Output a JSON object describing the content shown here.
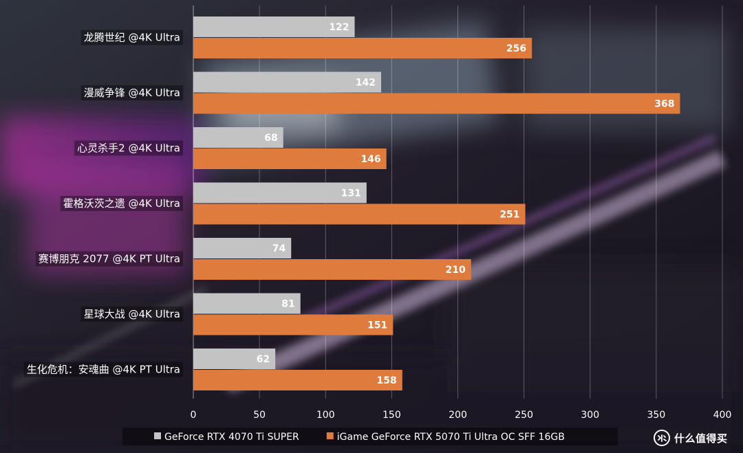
{
  "chart_data": {
    "type": "bar",
    "orientation": "horizontal",
    "categories": [
      "龙腾世纪 @4K Ultra",
      "漫威争锋 @4K Ultra",
      "心灵杀手2 @4K Ultra",
      "霍格沃茨之遗 @4K Ultra",
      "赛博朋克 2077 @4K PT Ultra",
      "星球大战 @4K Ultra",
      "生化危机：安魂曲 @4K PT Ultra"
    ],
    "series": [
      {
        "name": "GeForce RTX 4070 Ti SUPER",
        "color": "#c3c3c3",
        "values": [
          122,
          142,
          68,
          131,
          74,
          81,
          62
        ]
      },
      {
        "name": "iGame GeForce RTX 5070 Ti Ultra OC SFF 16GB",
        "color": "#e07b3e",
        "values": [
          256,
          368,
          146,
          251,
          210,
          151,
          158
        ]
      }
    ],
    "xlim": [
      0,
      400
    ],
    "x_ticks": [
      0,
      50,
      100,
      150,
      200,
      250,
      300,
      350,
      400
    ],
    "grid": "vertical",
    "legend_position": "bottom",
    "data_labels": true
  },
  "watermark": {
    "text": "什么值得买",
    "icon": "smzdm-logo-icon"
  }
}
